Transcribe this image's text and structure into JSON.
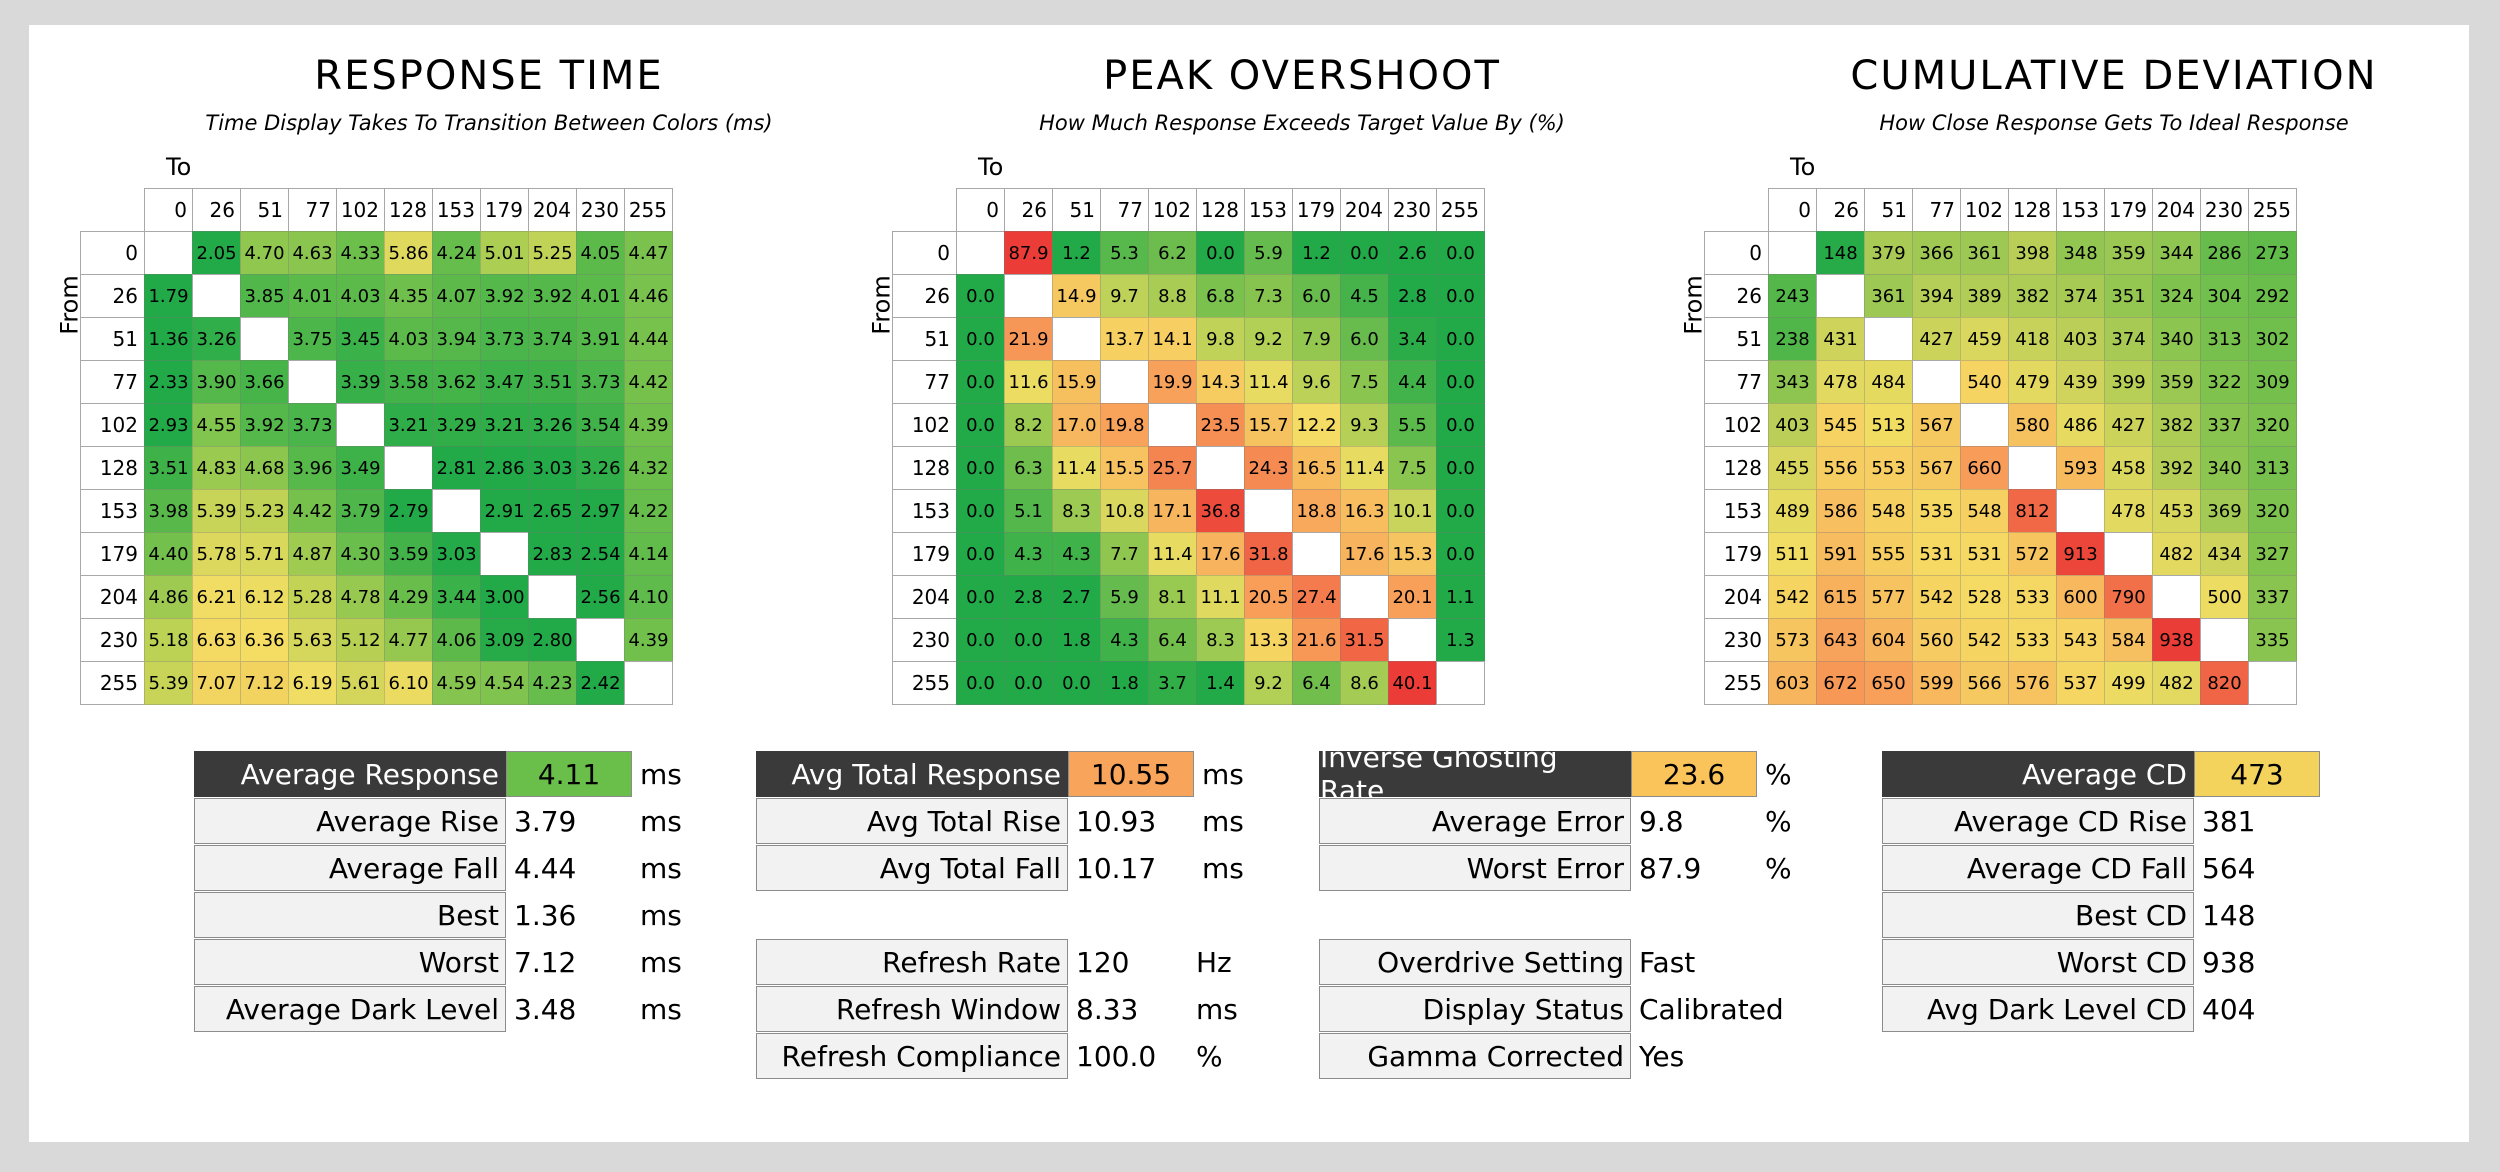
{
  "chart_data": [
    {
      "type": "heatmap",
      "title": "RESPONSE TIME",
      "subtitle": "Time Display Takes To Transition Between Colors (ms)",
      "xlabel": "To",
      "ylabel": "From",
      "color_mode": "response",
      "x": [
        "0",
        "26",
        "51",
        "77",
        "102",
        "128",
        "153",
        "179",
        "204",
        "230",
        "255"
      ],
      "y": [
        "0",
        "26",
        "51",
        "77",
        "102",
        "128",
        "153",
        "179",
        "204",
        "230",
        "255"
      ],
      "values": [
        [
          "",
          "2.05",
          "4.70",
          "4.63",
          "4.33",
          "5.86",
          "4.24",
          "5.01",
          "5.25",
          "4.05",
          "4.47"
        ],
        [
          "1.79",
          "",
          "3.85",
          "4.01",
          "4.03",
          "4.35",
          "4.07",
          "3.92",
          "3.92",
          "4.01",
          "4.46"
        ],
        [
          "1.36",
          "3.26",
          "",
          "3.75",
          "3.45",
          "4.03",
          "3.94",
          "3.73",
          "3.74",
          "3.91",
          "4.44"
        ],
        [
          "2.33",
          "3.90",
          "3.66",
          "",
          "3.39",
          "3.58",
          "3.62",
          "3.47",
          "3.51",
          "3.73",
          "4.42"
        ],
        [
          "2.93",
          "4.55",
          "3.92",
          "3.73",
          "",
          "3.21",
          "3.29",
          "3.21",
          "3.26",
          "3.54",
          "4.39"
        ],
        [
          "3.51",
          "4.83",
          "4.68",
          "3.96",
          "3.49",
          "",
          "2.81",
          "2.86",
          "3.03",
          "3.26",
          "4.32"
        ],
        [
          "3.98",
          "5.39",
          "5.23",
          "4.42",
          "3.79",
          "2.79",
          "",
          "2.91",
          "2.65",
          "2.97",
          "4.22"
        ],
        [
          "4.40",
          "5.78",
          "5.71",
          "4.87",
          "4.30",
          "3.59",
          "3.03",
          "",
          "2.83",
          "2.54",
          "4.14"
        ],
        [
          "4.86",
          "6.21",
          "6.12",
          "5.28",
          "4.78",
          "4.29",
          "3.44",
          "3.00",
          "",
          "2.56",
          "4.10"
        ],
        [
          "5.18",
          "6.63",
          "6.36",
          "5.63",
          "5.12",
          "4.77",
          "4.06",
          "3.09",
          "2.80",
          "",
          "4.39"
        ],
        [
          "5.39",
          "7.07",
          "7.12",
          "6.19",
          "5.61",
          "6.10",
          "4.59",
          "4.54",
          "4.23",
          "2.42",
          ""
        ]
      ]
    },
    {
      "type": "heatmap",
      "title": "PEAK OVERSHOOT",
      "subtitle": "How Much Response Exceeds Target Value By (%)",
      "xlabel": "To",
      "ylabel": "From",
      "color_mode": "overshoot",
      "x": [
        "0",
        "26",
        "51",
        "77",
        "102",
        "128",
        "153",
        "179",
        "204",
        "230",
        "255"
      ],
      "y": [
        "0",
        "26",
        "51",
        "77",
        "102",
        "128",
        "153",
        "179",
        "204",
        "230",
        "255"
      ],
      "values": [
        [
          "",
          "87.9",
          "1.2",
          "5.3",
          "6.2",
          "0.0",
          "5.9",
          "1.2",
          "0.0",
          "2.6",
          "0.0"
        ],
        [
          "0.0",
          "",
          "14.9",
          "9.7",
          "8.8",
          "6.8",
          "7.3",
          "6.0",
          "4.5",
          "2.8",
          "0.0"
        ],
        [
          "0.0",
          "21.9",
          "",
          "13.7",
          "14.1",
          "9.8",
          "9.2",
          "7.9",
          "6.0",
          "3.4",
          "0.0"
        ],
        [
          "0.0",
          "11.6",
          "15.9",
          "",
          "19.9",
          "14.3",
          "11.4",
          "9.6",
          "7.5",
          "4.4",
          "0.0"
        ],
        [
          "0.0",
          "8.2",
          "17.0",
          "19.8",
          "",
          "23.5",
          "15.7",
          "12.2",
          "9.3",
          "5.5",
          "0.0"
        ],
        [
          "0.0",
          "6.3",
          "11.4",
          "15.5",
          "25.7",
          "",
          "24.3",
          "16.5",
          "11.4",
          "7.5",
          "0.0"
        ],
        [
          "0.0",
          "5.1",
          "8.3",
          "10.8",
          "17.1",
          "36.8",
          "",
          "18.8",
          "16.3",
          "10.1",
          "0.0"
        ],
        [
          "0.0",
          "4.3",
          "4.3",
          "7.7",
          "11.4",
          "17.6",
          "31.8",
          "",
          "17.6",
          "15.3",
          "0.0"
        ],
        [
          "0.0",
          "2.8",
          "2.7",
          "5.9",
          "8.1",
          "11.1",
          "20.5",
          "27.4",
          "",
          "20.1",
          "1.1"
        ],
        [
          "0.0",
          "0.0",
          "1.8",
          "4.3",
          "6.4",
          "8.3",
          "13.3",
          "21.6",
          "31.5",
          "",
          "1.3"
        ],
        [
          "0.0",
          "0.0",
          "0.0",
          "1.8",
          "3.7",
          "1.4",
          "9.2",
          "6.4",
          "8.6",
          "40.1",
          ""
        ]
      ]
    },
    {
      "type": "heatmap",
      "title": "CUMULATIVE DEVIATION",
      "subtitle": "How Close Response Gets To Ideal Response",
      "xlabel": "To",
      "ylabel": "From",
      "color_mode": "deviation",
      "x": [
        "0",
        "26",
        "51",
        "77",
        "102",
        "128",
        "153",
        "179",
        "204",
        "230",
        "255"
      ],
      "y": [
        "0",
        "26",
        "51",
        "77",
        "102",
        "128",
        "153",
        "179",
        "204",
        "230",
        "255"
      ],
      "values": [
        [
          "",
          "148",
          "379",
          "366",
          "361",
          "398",
          "348",
          "359",
          "344",
          "286",
          "273"
        ],
        [
          "243",
          "",
          "361",
          "394",
          "389",
          "382",
          "374",
          "351",
          "324",
          "304",
          "292"
        ],
        [
          "238",
          "431",
          "",
          "427",
          "459",
          "418",
          "403",
          "374",
          "340",
          "313",
          "302"
        ],
        [
          "343",
          "478",
          "484",
          "",
          "540",
          "479",
          "439",
          "399",
          "359",
          "322",
          "309"
        ],
        [
          "403",
          "545",
          "513",
          "567",
          "",
          "580",
          "486",
          "427",
          "382",
          "337",
          "320"
        ],
        [
          "455",
          "556",
          "553",
          "567",
          "660",
          "",
          "593",
          "458",
          "392",
          "340",
          "313"
        ],
        [
          "489",
          "586",
          "548",
          "535",
          "548",
          "812",
          "",
          "478",
          "453",
          "369",
          "320"
        ],
        [
          "511",
          "591",
          "555",
          "531",
          "531",
          "572",
          "913",
          "",
          "482",
          "434",
          "327"
        ],
        [
          "542",
          "615",
          "577",
          "542",
          "528",
          "533",
          "600",
          "790",
          "",
          "500",
          "337"
        ],
        [
          "573",
          "643",
          "604",
          "560",
          "542",
          "533",
          "543",
          "584",
          "938",
          "",
          "335"
        ],
        [
          "603",
          "672",
          "650",
          "599",
          "566",
          "576",
          "537",
          "499",
          "482",
          "820",
          ""
        ]
      ]
    }
  ],
  "stats": {
    "response": [
      {
        "label": "Average Response",
        "value": "4.11",
        "unit": "ms",
        "primary": true,
        "color": "#6abf4b"
      },
      {
        "label": "Average Rise",
        "value": "3.79",
        "unit": "ms"
      },
      {
        "label": "Average Fall",
        "value": "4.44",
        "unit": "ms"
      },
      {
        "label": "Best",
        "value": "1.36",
        "unit": "ms"
      },
      {
        "label": "Worst",
        "value": "7.12",
        "unit": "ms"
      },
      {
        "label": "Average Dark Level",
        "value": "3.48",
        "unit": "ms"
      }
    ],
    "total": [
      {
        "label": "Avg Total Response",
        "value": "10.55",
        "unit": "ms",
        "primary": true,
        "color": "#f8a45a"
      },
      {
        "label": "Avg Total Rise",
        "value": "10.93",
        "unit": "ms"
      },
      {
        "label": "Avg Total Fall",
        "value": "10.17",
        "unit": "ms"
      }
    ],
    "refresh": [
      {
        "label": "Refresh Rate",
        "value": "120",
        "unit": "Hz"
      },
      {
        "label": "Refresh Window",
        "value": "8.33",
        "unit": "ms"
      },
      {
        "label": "Refresh Compliance",
        "value": "100.0",
        "unit": "%"
      }
    ],
    "ghosting": [
      {
        "label": "Inverse Ghosting Rate",
        "value": "23.6",
        "unit": "%",
        "primary": true,
        "color": "#fbc45b"
      },
      {
        "label": "Average Error",
        "value": "9.8",
        "unit": "%"
      },
      {
        "label": "Worst Error",
        "value": "87.9",
        "unit": "%"
      }
    ],
    "settings": [
      {
        "label": "Overdrive Setting",
        "value": "Fast",
        "unit": ""
      },
      {
        "label": "Display Status",
        "value": "Calibrated",
        "unit": ""
      },
      {
        "label": "Gamma Corrected",
        "value": "Yes",
        "unit": ""
      }
    ],
    "cd": [
      {
        "label": "Average CD",
        "value": "473",
        "unit": "",
        "primary": true,
        "color": "#f3d35c"
      },
      {
        "label": "Average CD Rise",
        "value": "381",
        "unit": ""
      },
      {
        "label": "Average CD Fall",
        "value": "564",
        "unit": ""
      },
      {
        "label": "Best CD",
        "value": "148",
        "unit": ""
      },
      {
        "label": "Worst CD",
        "value": "938",
        "unit": ""
      },
      {
        "label": "Avg Dark Level CD",
        "value": "404",
        "unit": ""
      }
    ]
  }
}
